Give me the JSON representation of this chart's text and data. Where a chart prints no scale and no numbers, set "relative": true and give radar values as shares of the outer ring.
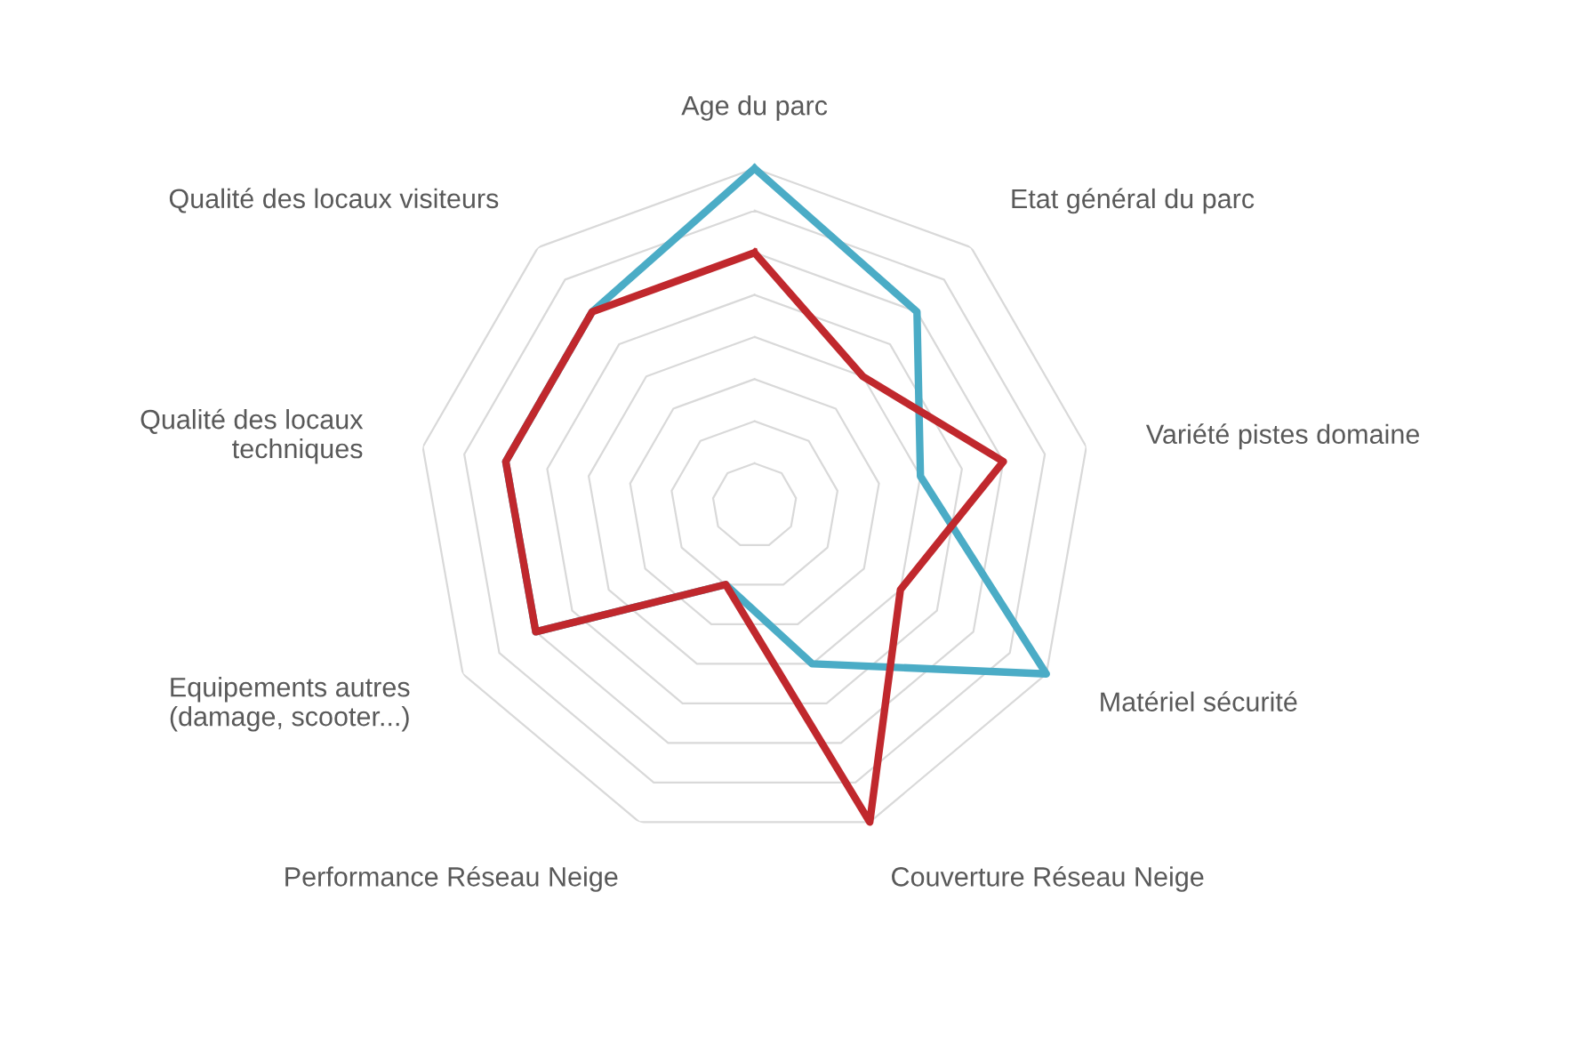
{
  "chart_data": {
    "type": "radar",
    "relative": true,
    "grid": true,
    "categories": [
      "Age du parc",
      "Etat général du parc",
      "Variété pistes domaine",
      "Matériel sécurité",
      "Couverture Réseau Neige",
      "Performance Réseau Neige",
      "Equipements autres\n(damage, scooter...)",
      "Qualité des locaux\ntechniques",
      "Qualité des locaux visiteurs"
    ],
    "series": [
      {
        "color": "#4bacc6",
        "values": [
          1.0,
          0.75,
          0.5,
          1.0,
          0.5,
          0.25,
          0.75,
          0.75,
          0.75
        ]
      },
      {
        "color": "#c0282d",
        "values": [
          0.75,
          0.5,
          0.75,
          0.5,
          1.0,
          0.25,
          0.75,
          0.75,
          0.75
        ]
      }
    ]
  }
}
